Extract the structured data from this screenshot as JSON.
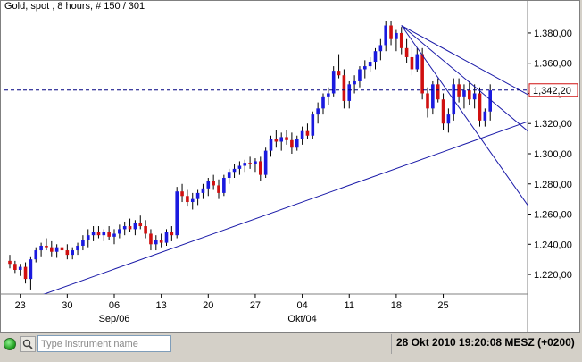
{
  "title": "Gold, spot , 8 hours, # 150 / 301",
  "current_price_label": "1,342,20",
  "status_bar": {
    "instrument_placeholder": "Type instrument name",
    "datetime": "28 Okt 2010 19:20:08  MESZ (+0200)"
  },
  "colors": {
    "up": "#1a1adf",
    "down": "#d01010",
    "trendline": "#1a1aa8",
    "price_line": "#000080",
    "price_label": "#d01010"
  },
  "chart_data": {
    "type": "candlestick",
    "title": "Gold, spot , 8 hours, # 150 / 301",
    "x_tick_labels": [
      "23",
      "30",
      "06",
      "13",
      "20",
      "27",
      "04",
      "11",
      "18",
      "25"
    ],
    "x_tick_index": [
      2,
      11,
      20,
      29,
      38,
      47,
      56,
      65,
      74,
      83
    ],
    "month_labels": [
      {
        "label": "Sep/06",
        "index": 20
      },
      {
        "label": "Okt/04",
        "index": 56
      }
    ],
    "y_ticks": [
      1220,
      1240,
      1260,
      1280,
      1300,
      1320,
      1340,
      1360,
      1380
    ],
    "y_tick_labels": [
      "1.220,00",
      "1.240,00",
      "1.260,00",
      "1.280,00",
      "1.300,00",
      "1.320,00",
      "1.340,00",
      "1.360,00",
      "1.380,00"
    ],
    "ylim": [
      1207,
      1393
    ],
    "grid": false,
    "current_price": 1342.2,
    "trendlines": [
      {
        "from": [
          5,
          1205
        ],
        "to": [
          103,
          1326
        ]
      },
      {
        "from": [
          75,
          1385
        ],
        "to": [
          103,
          1332
        ]
      },
      {
        "from": [
          75,
          1385
        ],
        "to": [
          103,
          1304
        ]
      },
      {
        "from": [
          75,
          1385
        ],
        "to": [
          103,
          1247
        ]
      }
    ],
    "candles": [
      [
        1229,
        1233,
        1224,
        1227
      ],
      [
        1227,
        1229,
        1221,
        1223
      ],
      [
        1223,
        1227,
        1219,
        1225
      ],
      [
        1225,
        1228,
        1214,
        1217
      ],
      [
        1217,
        1232,
        1210,
        1230
      ],
      [
        1230,
        1238,
        1228,
        1236
      ],
      [
        1236,
        1241,
        1232,
        1239
      ],
      [
        1239,
        1244,
        1236,
        1238
      ],
      [
        1238,
        1242,
        1232,
        1235
      ],
      [
        1235,
        1240,
        1231,
        1238
      ],
      [
        1238,
        1243,
        1234,
        1236
      ],
      [
        1236,
        1240,
        1230,
        1233
      ],
      [
        1233,
        1238,
        1230,
        1236
      ],
      [
        1236,
        1241,
        1233,
        1239
      ],
      [
        1239,
        1246,
        1236,
        1243
      ],
      [
        1243,
        1250,
        1238,
        1246
      ],
      [
        1246,
        1252,
        1242,
        1248
      ],
      [
        1248,
        1252,
        1244,
        1246
      ],
      [
        1246,
        1250,
        1242,
        1248
      ],
      [
        1248,
        1252,
        1243,
        1245
      ],
      [
        1245,
        1250,
        1240,
        1247
      ],
      [
        1247,
        1253,
        1244,
        1250
      ],
      [
        1250,
        1255,
        1246,
        1252
      ],
      [
        1252,
        1257,
        1248,
        1250
      ],
      [
        1250,
        1256,
        1246,
        1254
      ],
      [
        1254,
        1259,
        1250,
        1252
      ],
      [
        1252,
        1256,
        1244,
        1247
      ],
      [
        1247,
        1250,
        1236,
        1240
      ],
      [
        1240,
        1246,
        1236,
        1243
      ],
      [
        1243,
        1247,
        1238,
        1241
      ],
      [
        1241,
        1250,
        1239,
        1248
      ],
      [
        1248,
        1252,
        1242,
        1246
      ],
      [
        1246,
        1278,
        1244,
        1275
      ],
      [
        1275,
        1280,
        1268,
        1272
      ],
      [
        1272,
        1276,
        1265,
        1268
      ],
      [
        1268,
        1274,
        1263,
        1270
      ],
      [
        1270,
        1276,
        1266,
        1274
      ],
      [
        1274,
        1280,
        1270,
        1277
      ],
      [
        1277,
        1284,
        1272,
        1282
      ],
      [
        1282,
        1286,
        1276,
        1279
      ],
      [
        1279,
        1283,
        1270,
        1274
      ],
      [
        1274,
        1286,
        1272,
        1284
      ],
      [
        1284,
        1290,
        1280,
        1288
      ],
      [
        1288,
        1293,
        1284,
        1290
      ],
      [
        1290,
        1295,
        1286,
        1292
      ],
      [
        1292,
        1296,
        1288,
        1294
      ],
      [
        1294,
        1298,
        1290,
        1293
      ],
      [
        1293,
        1297,
        1288,
        1295
      ],
      [
        1295,
        1298,
        1282,
        1286
      ],
      [
        1286,
        1304,
        1284,
        1302
      ],
      [
        1302,
        1312,
        1298,
        1310
      ],
      [
        1310,
        1316,
        1304,
        1308
      ],
      [
        1308,
        1314,
        1302,
        1311
      ],
      [
        1311,
        1316,
        1306,
        1309
      ],
      [
        1309,
        1314,
        1300,
        1304
      ],
      [
        1304,
        1312,
        1302,
        1310
      ],
      [
        1310,
        1318,
        1306,
        1315
      ],
      [
        1315,
        1320,
        1310,
        1312
      ],
      [
        1312,
        1328,
        1310,
        1326
      ],
      [
        1326,
        1334,
        1320,
        1330
      ],
      [
        1330,
        1340,
        1326,
        1338
      ],
      [
        1338,
        1344,
        1332,
        1340
      ],
      [
        1340,
        1358,
        1338,
        1355
      ],
      [
        1355,
        1366,
        1350,
        1352
      ],
      [
        1352,
        1356,
        1330,
        1335
      ],
      [
        1335,
        1348,
        1330,
        1346
      ],
      [
        1346,
        1352,
        1340,
        1348
      ],
      [
        1348,
        1358,
        1344,
        1356
      ],
      [
        1356,
        1362,
        1350,
        1358
      ],
      [
        1358,
        1364,
        1354,
        1361
      ],
      [
        1361,
        1370,
        1356,
        1368
      ],
      [
        1368,
        1376,
        1362,
        1372
      ],
      [
        1372,
        1388,
        1368,
        1385
      ],
      [
        1385,
        1388,
        1372,
        1376
      ],
      [
        1376,
        1382,
        1368,
        1380
      ],
      [
        1380,
        1384,
        1366,
        1370
      ],
      [
        1370,
        1376,
        1360,
        1364
      ],
      [
        1364,
        1372,
        1352,
        1356
      ],
      [
        1356,
        1370,
        1354,
        1366
      ],
      [
        1366,
        1370,
        1336,
        1340
      ],
      [
        1340,
        1344,
        1324,
        1330
      ],
      [
        1330,
        1348,
        1326,
        1346
      ],
      [
        1346,
        1350,
        1334,
        1336
      ],
      [
        1336,
        1340,
        1316,
        1320
      ],
      [
        1320,
        1330,
        1314,
        1326
      ],
      [
        1326,
        1350,
        1322,
        1346
      ],
      [
        1346,
        1350,
        1334,
        1338
      ],
      [
        1338,
        1346,
        1330,
        1342
      ],
      [
        1342,
        1348,
        1332,
        1336
      ],
      [
        1336,
        1346,
        1330,
        1340
      ],
      [
        1340,
        1344,
        1318,
        1322
      ],
      [
        1322,
        1330,
        1318,
        1328
      ],
      [
        1328,
        1346,
        1322,
        1342
      ]
    ]
  }
}
